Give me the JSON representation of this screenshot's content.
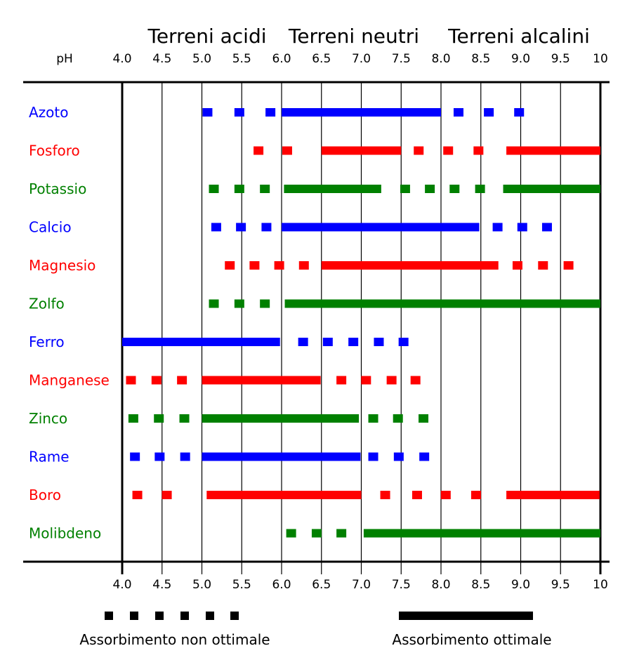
{
  "chart_data": {
    "type": "bar",
    "title": "",
    "xlabel": "pH",
    "xlim": [
      4.0,
      10.0
    ],
    "zones": [
      {
        "label": "Terreni acidi"
      },
      {
        "label": "Terreni neutri"
      },
      {
        "label": "Terreni alcalini"
      }
    ],
    "ticks": [
      "4.0",
      "4.5",
      "5.0",
      "5.5",
      "6.0",
      "6.5",
      "7.0",
      "7.5",
      "8.0",
      "8.5",
      "9.0",
      "9.5",
      "10"
    ],
    "tick_values": [
      4.0,
      4.5,
      5.0,
      5.5,
      6.0,
      6.5,
      7.0,
      7.5,
      8.0,
      8.5,
      9.0,
      9.5,
      10.0
    ],
    "series": [
      {
        "name": "Azoto",
        "color": "#0000ff",
        "dots": [
          5.07,
          5.47,
          5.86,
          8.22,
          8.6,
          8.98
        ],
        "solid": [
          [
            6.0,
            8.0
          ]
        ]
      },
      {
        "name": "Fosforo",
        "color": "#ff0000",
        "dots": [
          5.71,
          6.07,
          7.72,
          8.09,
          8.47
        ],
        "solid": [
          [
            6.5,
            7.5
          ],
          [
            8.82,
            10.0
          ]
        ]
      },
      {
        "name": "Potassio",
        "color": "#008000",
        "dots": [
          5.15,
          5.47,
          5.79,
          7.55,
          7.86,
          8.17,
          8.49
        ],
        "solid": [
          [
            6.03,
            7.25
          ],
          [
            8.78,
            10.0
          ]
        ]
      },
      {
        "name": "Calcio",
        "color": "#0000ff",
        "dots": [
          5.18,
          5.49,
          5.81,
          8.71,
          9.02,
          9.33
        ],
        "solid": [
          [
            6.0,
            8.48
          ]
        ]
      },
      {
        "name": "Magnesio",
        "color": "#ff0000",
        "dots": [
          5.35,
          5.66,
          5.97,
          6.28,
          8.96,
          9.28,
          9.6
        ],
        "solid": [
          [
            6.5,
            8.72
          ]
        ]
      },
      {
        "name": "Zolfo",
        "color": "#008000",
        "dots": [
          5.15,
          5.47,
          5.79
        ],
        "solid": [
          [
            6.04,
            10.0
          ]
        ]
      },
      {
        "name": "Ferro",
        "color": "#0000ff",
        "dots": [
          6.27,
          6.58,
          6.9,
          7.22,
          7.53
        ],
        "solid": [
          [
            4.0,
            5.98
          ]
        ]
      },
      {
        "name": "Manganese",
        "color": "#ff0000",
        "dots": [
          4.11,
          4.43,
          4.75,
          6.75,
          7.06,
          7.38,
          7.68
        ],
        "solid": [
          [
            5.0,
            6.49
          ]
        ]
      },
      {
        "name": "Zinco",
        "color": "#008000",
        "dots": [
          4.14,
          4.46,
          4.78,
          7.15,
          7.46,
          7.78
        ],
        "solid": [
          [
            5.0,
            6.97
          ]
        ]
      },
      {
        "name": "Rame",
        "color": "#0000ff",
        "dots": [
          4.16,
          4.47,
          4.79,
          7.15,
          7.47,
          7.79
        ],
        "solid": [
          [
            5.0,
            6.99
          ]
        ]
      },
      {
        "name": "Boro",
        "color": "#ff0000",
        "dots": [
          4.19,
          4.56,
          7.3,
          7.7,
          8.06,
          8.44
        ],
        "solid": [
          [
            5.06,
            7.0
          ],
          [
            8.82,
            9.99
          ]
        ]
      },
      {
        "name": "Molibdeno",
        "color": "#008000",
        "dots": [
          6.12,
          6.44,
          6.75
        ],
        "solid": [
          [
            7.03,
            10.0
          ]
        ]
      }
    ],
    "legend": {
      "dotted_label": "Assorbimento non ottimale",
      "solid_label": "Assorbimento ottimale",
      "color": "#000000"
    }
  }
}
